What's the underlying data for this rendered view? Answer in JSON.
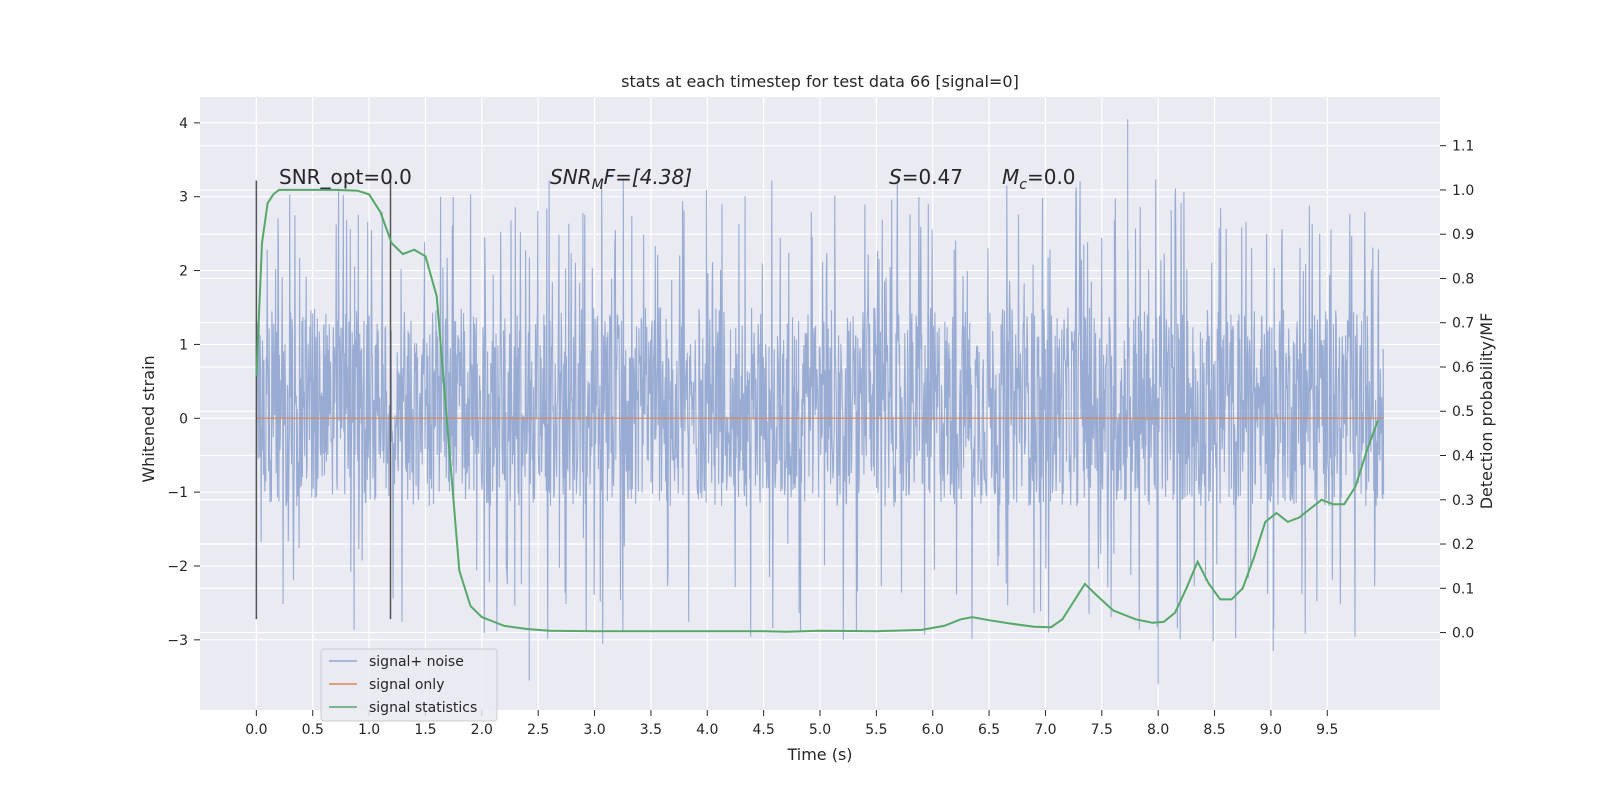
{
  "chart_data": {
    "type": "line",
    "title": "stats at each timestep for test data 66 [signal=0]",
    "xlabel": "Time (s)",
    "ylabel": "Whitened strain",
    "y2label": "Detection probability/MF",
    "xlim": [
      -0.5,
      10.5
    ],
    "ylim": [
      -3.95,
      4.35
    ],
    "y2lim": [
      -0.175,
      1.21
    ],
    "xticks": [
      0.0,
      0.5,
      1.0,
      1.5,
      2.0,
      2.5,
      3.0,
      3.5,
      4.0,
      4.5,
      5.0,
      5.5,
      6.0,
      6.5,
      7.0,
      7.5,
      8.0,
      8.5,
      9.0,
      9.5
    ],
    "yticks": [
      -3,
      -2,
      -1,
      0,
      1,
      2,
      3,
      4
    ],
    "y2ticks": [
      0.0,
      0.1,
      0.2,
      0.3,
      0.4,
      0.5,
      0.6,
      0.7,
      0.8,
      0.9,
      1.0,
      1.1
    ],
    "grid": true,
    "legend_position": "lower-left",
    "vertical_markers": [
      0.0,
      1.19
    ],
    "annotations": {
      "snr_opt": "SNR_opt=0.0",
      "snr_mf_prefix": "SNR",
      "snr_mf_sub": "M",
      "snr_mf_suffix": "F=[4.38]",
      "s_italic": "S",
      "s_value": "=0.47",
      "mc_italic": "M",
      "mc_sub": "c",
      "mc_value": "=0.0"
    },
    "series": [
      {
        "name": "signal+ noise",
        "color": "#8fa4cf",
        "x_range": [
          0.0,
          10.0
        ],
        "amplitude_envelope": {
          "core_low": -1.2,
          "core_high": 1.5,
          "peak_low": -3.6,
          "peak_high": 4.05
        }
      },
      {
        "name": "signal only",
        "color": "#dd8452",
        "x": [
          0.0,
          10.0
        ],
        "y": [
          0.0,
          0.0
        ]
      },
      {
        "name": "signal statistics",
        "color": "#55a868",
        "axis": "right",
        "x": [
          0.0,
          0.05,
          0.1,
          0.15,
          0.2,
          0.3,
          0.5,
          0.7,
          0.9,
          1.0,
          1.1,
          1.2,
          1.3,
          1.4,
          1.5,
          1.6,
          1.7,
          1.8,
          1.9,
          2.0,
          2.1,
          2.2,
          2.4,
          2.6,
          3.0,
          3.5,
          4.0,
          4.5,
          4.7,
          5.0,
          5.5,
          5.9,
          6.1,
          6.25,
          6.35,
          6.5,
          6.7,
          6.9,
          7.05,
          7.15,
          7.25,
          7.35,
          7.45,
          7.6,
          7.8,
          7.95,
          8.05,
          8.15,
          8.25,
          8.35,
          8.45,
          8.55,
          8.65,
          8.75,
          8.85,
          8.95,
          9.05,
          9.15,
          9.25,
          9.35,
          9.45,
          9.55,
          9.65,
          9.75,
          9.85,
          9.95
        ],
        "y": [
          0.58,
          0.88,
          0.97,
          0.99,
          1.0,
          1.0,
          1.0,
          1.0,
          0.998,
          0.99,
          0.95,
          0.88,
          0.855,
          0.865,
          0.85,
          0.76,
          0.45,
          0.14,
          0.06,
          0.035,
          0.025,
          0.015,
          0.008,
          0.004,
          0.003,
          0.003,
          0.003,
          0.003,
          0.002,
          0.004,
          0.003,
          0.006,
          0.015,
          0.03,
          0.035,
          0.028,
          0.02,
          0.013,
          0.012,
          0.03,
          0.07,
          0.11,
          0.085,
          0.05,
          0.03,
          0.022,
          0.024,
          0.045,
          0.1,
          0.16,
          0.11,
          0.075,
          0.075,
          0.1,
          0.17,
          0.25,
          0.27,
          0.25,
          0.26,
          0.28,
          0.3,
          0.29,
          0.29,
          0.33,
          0.41,
          0.48
        ]
      }
    ]
  }
}
